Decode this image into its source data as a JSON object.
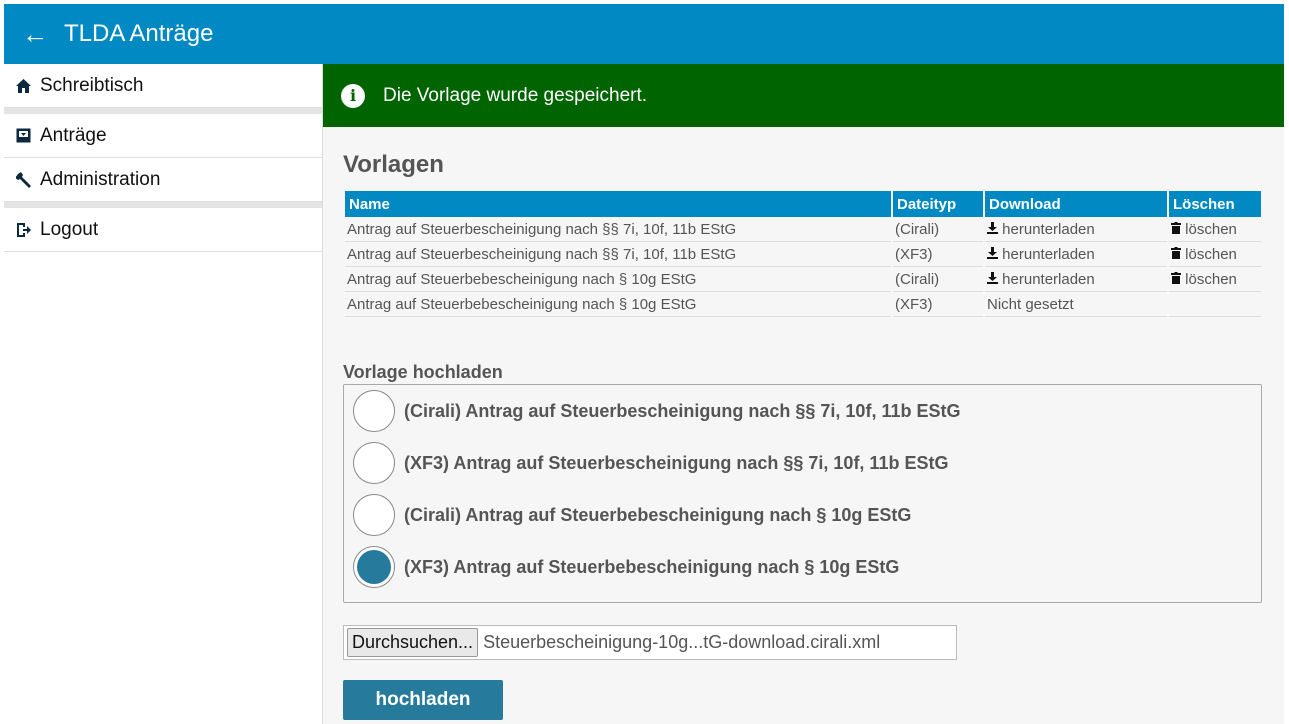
{
  "header": {
    "title": "TLDA Anträge",
    "back_icon": "arrow-left-icon"
  },
  "sidebar": {
    "items": [
      {
        "label": "Schreibtisch",
        "icon": "home-icon"
      },
      {
        "label": "Anträge",
        "icon": "inbox-download-icon"
      },
      {
        "label": "Administration",
        "icon": "wrench-icon"
      },
      {
        "label": "Logout",
        "icon": "logout-icon"
      }
    ]
  },
  "alert": {
    "message": "Die Vorlage wurde gespeichert.",
    "color": "#006400"
  },
  "vorlagen": {
    "title": "Vorlagen",
    "columns": [
      "Name",
      "Dateityp",
      "Download",
      "Löschen"
    ],
    "rows": [
      {
        "name": "Antrag auf Steuerbescheinigung nach §§ 7i, 10f, 11b EStG",
        "type": "(Cirali)",
        "download": "herunterladen",
        "delete": "löschen"
      },
      {
        "name": "Antrag auf Steuerbescheinigung nach §§ 7i, 10f, 11b EStG",
        "type": "(XF3)",
        "download": "herunterladen",
        "delete": "löschen"
      },
      {
        "name": "Antrag auf Steuerbebescheinigung nach § 10g EStG",
        "type": "(Cirali)",
        "download": "herunterladen",
        "delete": "löschen"
      },
      {
        "name": "Antrag auf Steuerbebescheinigung nach § 10g EStG",
        "type": "(XF3)",
        "download_status": "Nicht gesetzt"
      }
    ]
  },
  "upload": {
    "title": "Vorlage hochladen",
    "options": [
      {
        "label": "(Cirali) Antrag auf Steuerbescheinigung nach §§ 7i, 10f, 11b EStG",
        "selected": false
      },
      {
        "label": "(XF3) Antrag auf Steuerbescheinigung nach §§ 7i, 10f, 11b EStG",
        "selected": false
      },
      {
        "label": "(Cirali) Antrag auf Steuerbebescheinigung nach § 10g EStG",
        "selected": false
      },
      {
        "label": "(XF3) Antrag auf Steuerbebescheinigung nach § 10g EStG",
        "selected": true
      }
    ],
    "browse_label": "Durchsuchen...",
    "file_name": "Steuerbescheinigung-10g...tG-download.cirali.xml",
    "submit_label": "hochladen"
  },
  "colors": {
    "primary": "#0089c2",
    "button": "#267a9b"
  }
}
